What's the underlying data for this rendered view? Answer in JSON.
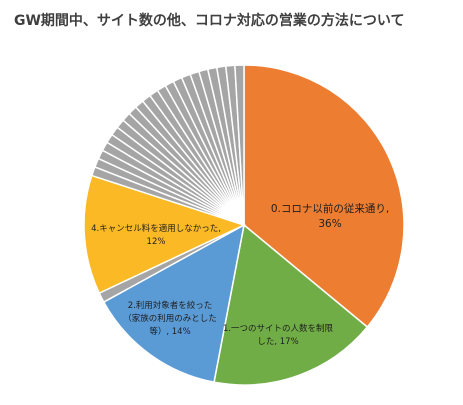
{
  "chart_data": {
    "type": "pie",
    "title": "GW期間中、サイト数の他、コロナ対応の営業の方法について",
    "start_angle_deg": 0,
    "direction": "clockwise",
    "slices": [
      {
        "label_lines": [
          "0.コロナ以前の従来通り,",
          "36%"
        ],
        "value": 36,
        "color": "#ED7D31"
      },
      {
        "label_lines": [
          "1.一つのサイトの人数を制限",
          "した, 17%"
        ],
        "value": 17,
        "color": "#70AD47"
      },
      {
        "label_lines": [
          "2.利用対象者を絞った",
          "（家族の利用のみとした",
          "等）, 14%"
        ],
        "value": 14,
        "color": "#5B9BD5"
      },
      {
        "label_lines": [],
        "value": 1,
        "color": "#A5A5A5"
      },
      {
        "label_lines": [
          "4.キャンセル料を適用しなかった,",
          "12%"
        ],
        "value": 12,
        "color": "#FBB925"
      },
      {
        "label_lines": [],
        "value": 20,
        "color": "#A5A5A5",
        "subdivisions": 22
      }
    ]
  }
}
